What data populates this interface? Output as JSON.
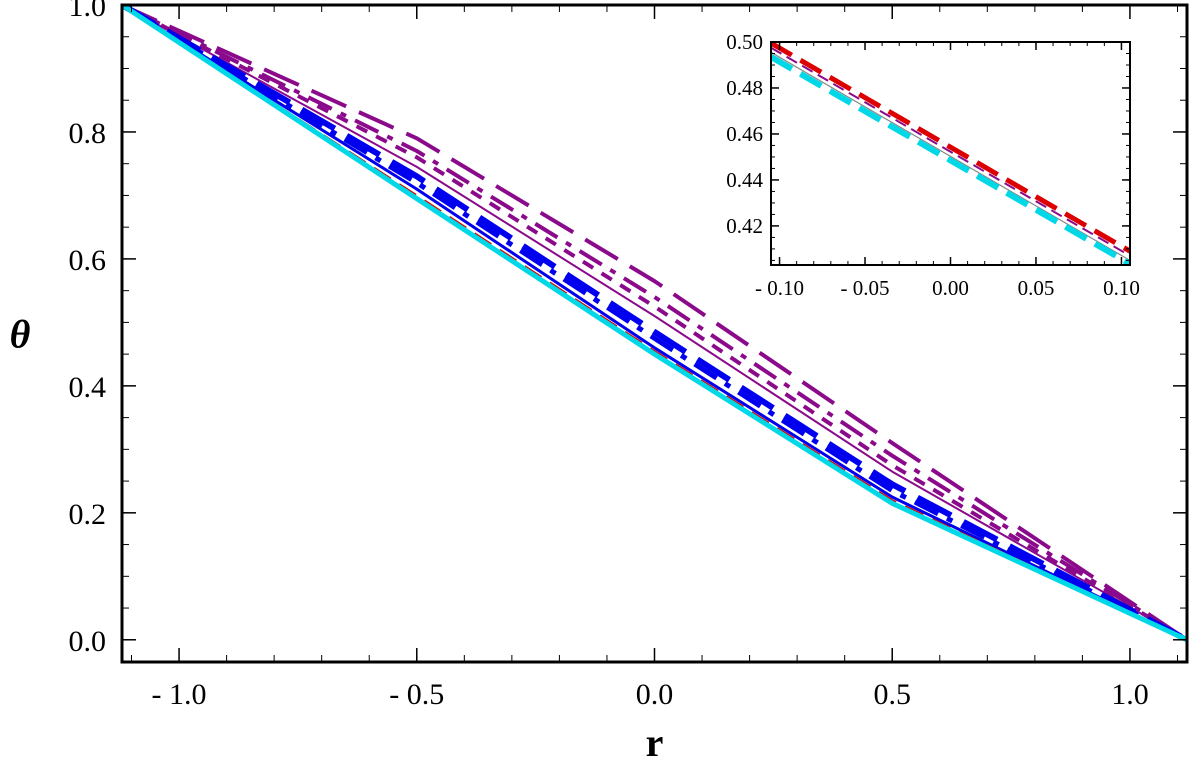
{
  "chart_data": [
    {
      "type": "line",
      "title": "",
      "xlabel": "r",
      "ylabel": "θ",
      "xlim": [
        -1.12,
        1.12
      ],
      "ylim": [
        -0.035,
        1.0
      ],
      "xticks": [
        -1.0,
        -0.5,
        0.0,
        0.5,
        1.0
      ],
      "xtick_labels": [
        "- 1.0",
        "- 0.5",
        "0.0",
        "0.5",
        "1.0"
      ],
      "yticks": [
        0.0,
        0.2,
        0.4,
        0.6,
        0.8,
        1.0
      ],
      "ytick_labels": [
        "0.0",
        "0.2",
        "0.4",
        "0.6",
        "0.8",
        "1.0"
      ],
      "grid": false,
      "legend": "none",
      "series": [
        {
          "color": "#8b0a8b",
          "style": "long-dash",
          "width": 4,
          "x": [
            -1.12,
            -0.5,
            0.0,
            0.5,
            1.12
          ],
          "y": [
            1.0,
            0.79,
            0.565,
            0.31,
            0.0
          ]
        },
        {
          "color": "#8b0a8b",
          "style": "dash-dot",
          "width": 4,
          "x": [
            -1.12,
            -0.5,
            0.0,
            0.5,
            1.12
          ],
          "y": [
            1.0,
            0.77,
            0.54,
            0.29,
            0.0
          ]
        },
        {
          "color": "#8b0a8b",
          "style": "short-dash",
          "width": 4,
          "x": [
            -1.12,
            -0.5,
            0.0,
            0.5,
            1.12
          ],
          "y": [
            1.0,
            0.76,
            0.525,
            0.275,
            0.0
          ]
        },
        {
          "color": "#8b0a8b",
          "style": "solid",
          "width": 2,
          "x": [
            -1.12,
            -0.5,
            0.0,
            0.5,
            1.12
          ],
          "y": [
            1.0,
            0.745,
            0.51,
            0.265,
            0.0
          ]
        },
        {
          "color": "#0000ee",
          "style": "long-dash",
          "width": 6,
          "x": [
            -1.12,
            -0.5,
            0.0,
            0.5,
            1.12
          ],
          "y": [
            1.0,
            0.73,
            0.485,
            0.245,
            0.0
          ]
        },
        {
          "color": "#0000ee",
          "style": "dash-dot",
          "width": 5,
          "x": [
            -1.12,
            -0.5,
            0.0,
            0.5,
            1.12
          ],
          "y": [
            1.0,
            0.72,
            0.475,
            0.235,
            0.0
          ]
        },
        {
          "color": "#0000ee",
          "style": "solid",
          "width": 3,
          "x": [
            -1.12,
            -0.5,
            0.0,
            0.5,
            1.12
          ],
          "y": [
            1.0,
            0.71,
            0.46,
            0.225,
            0.0
          ]
        },
        {
          "color": "#dd0000",
          "style": "dash",
          "width": 2,
          "x": [
            -1.12,
            -0.5,
            0.0,
            0.5,
            1.12
          ],
          "y": [
            1.0,
            0.7,
            0.455,
            0.22,
            0.0
          ]
        },
        {
          "color": "#00d8e8",
          "style": "solid",
          "width": 5,
          "x": [
            -1.12,
            -0.5,
            0.0,
            0.5,
            1.12
          ],
          "y": [
            1.0,
            0.695,
            0.45,
            0.215,
            0.0
          ]
        }
      ]
    },
    {
      "type": "line",
      "title": "",
      "xlabel": "",
      "ylabel": "",
      "placement": "inset top-right",
      "xlim": [
        -0.105,
        0.105
      ],
      "ylim": [
        0.403,
        0.5
      ],
      "xticks": [
        -0.1,
        -0.05,
        0.0,
        0.05,
        0.1
      ],
      "xtick_labels": [
        "- 0.10",
        "- 0.05",
        "0.00",
        "0.05",
        "0.10"
      ],
      "yticks": [
        0.42,
        0.44,
        0.46,
        0.48,
        0.5
      ],
      "ytick_labels": [
        "0.42",
        "0.44",
        "0.46",
        "0.48",
        "0.50"
      ],
      "grid": false,
      "legend": "none",
      "series": [
        {
          "color": "#dd0000",
          "style": "long-dash",
          "width": 5,
          "x": [
            -0.105,
            0.105
          ],
          "y": [
            0.4995,
            0.409
          ]
        },
        {
          "color": "#8b0a8b",
          "style": "dash",
          "width": 2,
          "x": [
            -0.105,
            0.105
          ],
          "y": [
            0.4975,
            0.407
          ]
        },
        {
          "color": "#888888",
          "style": "solid",
          "width": 1.2,
          "x": [
            -0.105,
            0.105
          ],
          "y": [
            0.4955,
            0.405
          ]
        },
        {
          "color": "#00d8e8",
          "style": "long-dash",
          "width": 6,
          "x": [
            -0.105,
            0.105
          ],
          "y": [
            0.4935,
            0.4035
          ]
        }
      ]
    }
  ]
}
